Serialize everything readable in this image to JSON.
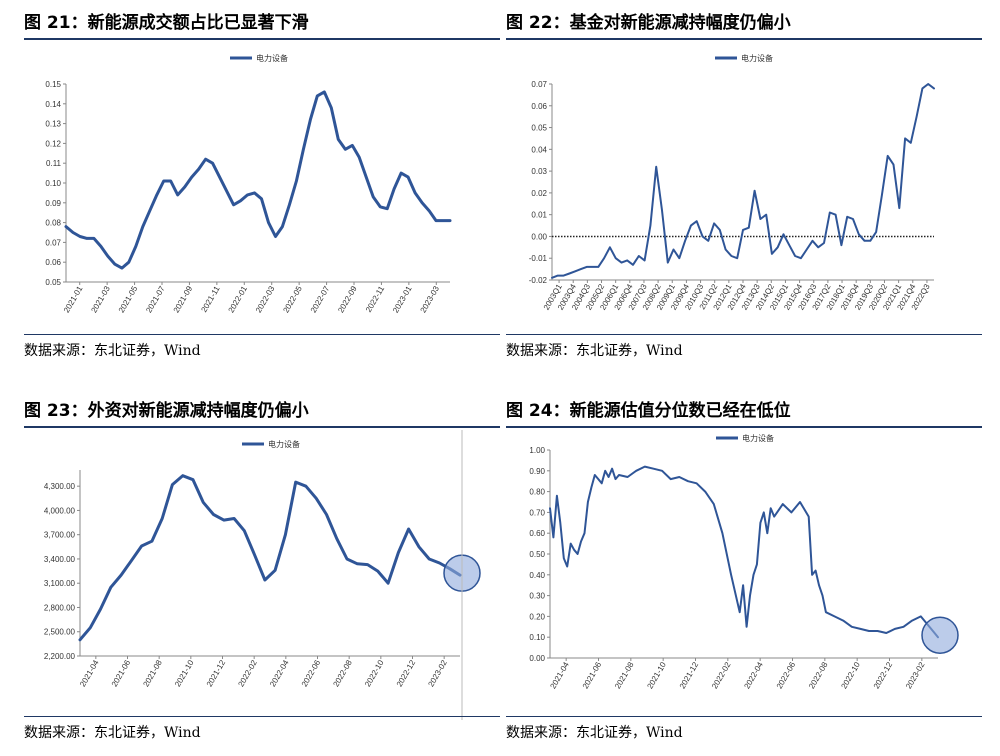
{
  "panels": [
    {
      "id": "fig21",
      "title": "图  21：新能源成交额占比已显著下滑",
      "source": "数据来源：东北证券，Wind"
    },
    {
      "id": "fig22",
      "title": "图  22：基金对新能源减持幅度仍偏小",
      "source": "数据来源：东北证券，Wind"
    },
    {
      "id": "fig23",
      "title": "图  23：外资对新能源减持幅度仍偏小",
      "source": "数据来源：东北证券，Wind"
    },
    {
      "id": "fig24",
      "title": "图  24：新能源估值分位数已经在低位",
      "source": "数据来源：东北证券，Wind"
    }
  ],
  "colors": {
    "line": "#2f5597",
    "rule": "#1f3864",
    "highlight_fill": "#8faadc",
    "highlight_stroke": "#2f5597"
  },
  "chart_data": [
    {
      "type": "line",
      "legend_position": "top-center",
      "grid": false,
      "ylim": [
        0.05,
        0.15
      ],
      "yticks": [
        "0.05",
        "0.06",
        "0.07",
        "0.08",
        "0.09",
        "0.10",
        "0.11",
        "0.12",
        "0.13",
        "0.14",
        "0.15"
      ],
      "xticks": [
        "2021-01",
        "2021-03",
        "2021-05",
        "2021-07",
        "2021-09",
        "2021-11",
        "2022-01",
        "2022-03",
        "2022-05",
        "2022-07",
        "2022-09",
        "2022-11",
        "2023-01",
        "2023-03"
      ],
      "series": [
        {
          "name": "电力设备",
          "x": [
            0,
            0.5,
            1,
            1.5,
            2,
            2.5,
            3,
            3.5,
            4,
            4.5,
            5,
            5.5,
            6,
            6.5,
            7,
            7.5,
            8,
            8.5,
            9,
            9.5,
            10,
            10.5,
            11,
            11.5,
            12,
            12.5,
            13,
            13.5,
            14,
            14.5,
            15,
            15.5,
            16,
            16.5,
            17,
            17.5,
            18,
            18.5,
            19,
            19.5,
            20,
            20.5,
            21,
            21.5,
            22,
            22.5,
            23,
            23.5,
            24,
            24.5,
            25,
            25.5,
            26,
            26.5,
            27,
            27.5
          ],
          "values": [
            0.078,
            0.075,
            0.073,
            0.072,
            0.072,
            0.068,
            0.063,
            0.059,
            0.057,
            0.06,
            0.068,
            0.078,
            0.086,
            0.094,
            0.101,
            0.101,
            0.094,
            0.098,
            0.103,
            0.107,
            0.112,
            0.11,
            0.103,
            0.096,
            0.089,
            0.091,
            0.094,
            0.095,
            0.092,
            0.08,
            0.073,
            0.078,
            0.089,
            0.101,
            0.117,
            0.132,
            0.144,
            0.146,
            0.138,
            0.122,
            0.117,
            0.119,
            0.113,
            0.103,
            0.093,
            0.088,
            0.087,
            0.097,
            0.105,
            0.103,
            0.095,
            0.09,
            0.086,
            0.081,
            0.081,
            0.081
          ]
        }
      ]
    },
    {
      "type": "line",
      "legend_position": "top-center",
      "grid": false,
      "zero_line": "dotted",
      "ylim": [
        -0.02,
        0.07
      ],
      "yticks": [
        "-0.02",
        "-0.01",
        "0.00",
        "0.01",
        "0.02",
        "0.03",
        "0.04",
        "0.05",
        "0.06",
        "0.07"
      ],
      "xticks": [
        "2003Q1",
        "2003Q4",
        "2004Q3",
        "2005Q2",
        "2006Q1",
        "2006Q4",
        "2007Q3",
        "2008Q2",
        "2009Q1",
        "2009Q4",
        "2010Q3",
        "2011Q2",
        "2012Q1",
        "2012Q4",
        "2013Q3",
        "2014Q2",
        "2015Q1",
        "2015Q4",
        "2016Q3",
        "2017Q2",
        "2018Q1",
        "2018Q4",
        "2019Q3",
        "2020Q2",
        "2021Q1",
        "2021Q4",
        "2022Q3"
      ],
      "series": [
        {
          "name": "电力设备",
          "x": [
            0,
            1,
            2,
            3,
            4,
            5,
            6,
            7,
            8,
            9,
            10,
            11,
            12,
            13,
            14,
            15,
            16,
            17,
            18,
            19,
            20,
            21,
            22,
            23,
            24,
            25,
            26,
            27,
            28,
            29,
            30,
            31,
            32,
            33,
            34,
            35,
            36,
            37,
            38,
            39,
            40,
            41,
            42,
            43,
            44,
            45,
            46,
            47,
            48,
            49,
            50,
            51,
            52,
            53,
            54,
            55,
            56,
            57,
            58,
            59,
            60,
            61,
            62,
            63,
            64,
            65,
            66,
            67,
            68,
            69,
            70,
            71,
            72,
            73,
            74,
            75,
            76,
            77,
            78
          ],
          "values": [
            -0.019,
            -0.018,
            -0.018,
            -0.017,
            -0.016,
            -0.015,
            -0.014,
            -0.014,
            -0.014,
            -0.01,
            -0.005,
            -0.01,
            -0.012,
            -0.011,
            -0.013,
            -0.009,
            -0.011,
            0.005,
            0.032,
            0.012,
            -0.012,
            -0.006,
            -0.01,
            -0.002,
            0.005,
            0.007,
            0.0,
            -0.002,
            0.006,
            0.003,
            -0.006,
            -0.009,
            -0.01,
            0.003,
            0.004,
            0.021,
            0.008,
            0.01,
            -0.008,
            -0.005,
            0.001,
            -0.004,
            -0.009,
            -0.01,
            -0.006,
            -0.002,
            -0.005,
            -0.003,
            0.011,
            0.01,
            -0.004,
            0.009,
            0.008,
            0.001,
            -0.002,
            -0.002,
            0.002,
            0.019,
            0.037,
            0.033,
            0.013,
            0.045,
            0.043,
            0.055,
            0.068,
            0.07,
            0.068,
            null,
            null,
            null,
            null,
            null,
            null,
            null,
            null,
            null,
            null,
            null,
            null
          ]
        }
      ]
    },
    {
      "type": "line",
      "legend_position": "top-center",
      "grid": false,
      "ylim": [
        2200,
        4500
      ],
      "yticks": [
        "2,200.00",
        "2,500.00",
        "2,800.00",
        "3,100.00",
        "3,400.00",
        "3,700.00",
        "4,000.00",
        "4,300.00"
      ],
      "xticks": [
        "2021-04",
        "2021-06",
        "2021-08",
        "2021-10",
        "2021-12",
        "2022-02",
        "2022-04",
        "2022-06",
        "2022-08",
        "2022-10",
        "2022-12",
        "2023-02"
      ],
      "highlight": "circle at series end",
      "series": [
        {
          "name": "电力设备",
          "x": [
            0,
            0.5,
            1,
            1.5,
            2,
            2.5,
            3,
            3.5,
            4,
            4.5,
            5,
            5.5,
            6,
            6.5,
            7,
            7.5,
            8,
            8.5,
            9,
            9.5,
            10,
            10.5,
            11,
            11.5,
            12,
            12.5,
            13,
            13.5,
            14,
            14.5,
            15,
            15.5,
            16,
            16.5,
            17,
            17.5,
            18,
            18.5,
            19,
            19.5,
            20,
            20.5,
            21,
            21.5,
            22,
            22.5,
            23,
            23.5
          ],
          "values": [
            2400,
            2550,
            2780,
            3050,
            3200,
            3380,
            3560,
            3620,
            3900,
            4320,
            4430,
            4380,
            4100,
            3950,
            3880,
            3900,
            3750,
            3450,
            3140,
            3260,
            3700,
            4350,
            4300,
            4150,
            3950,
            3650,
            3400,
            3340,
            3330,
            3250,
            3100,
            3480,
            3770,
            3550,
            3400,
            3350,
            3280,
            3200,
            null,
            null,
            null,
            null,
            null,
            null,
            null,
            null,
            null,
            null
          ]
        }
      ]
    },
    {
      "type": "line",
      "legend_position": "top-center",
      "grid": false,
      "ylim": [
        0,
        1
      ],
      "yticks": [
        "0.00",
        "0.10",
        "0.20",
        "0.30",
        "0.40",
        "0.50",
        "0.60",
        "0.70",
        "0.80",
        "0.90",
        "1.00"
      ],
      "xticks": [
        "2021-04",
        "2021-06",
        "2021-08",
        "2021-10",
        "2021-12",
        "2022-02",
        "2022-04",
        "2022-06",
        "2022-08",
        "2022-10",
        "2022-12",
        "2023-02"
      ],
      "highlight": "circle at series end",
      "series": [
        {
          "name": "电力设备",
          "x": [
            0,
            0.2,
            0.4,
            0.6,
            0.8,
            1,
            1.2,
            1.4,
            1.6,
            1.8,
            2,
            2.2,
            2.4,
            2.6,
            2.8,
            3,
            3.2,
            3.4,
            3.6,
            3.8,
            4,
            4.5,
            5,
            5.5,
            6,
            6.5,
            7,
            7.5,
            8,
            8.5,
            9,
            9.5,
            10,
            10.5,
            11,
            11.2,
            11.4,
            11.6,
            11.8,
            12,
            12.2,
            12.4,
            12.6,
            12.8,
            13,
            13.5,
            14,
            14.5,
            15,
            15.2,
            15.4,
            15.6,
            15.8,
            16,
            16.5,
            17,
            17.5,
            18,
            18.5,
            19,
            19.5,
            20,
            20.5,
            21,
            21.5,
            22,
            22.5
          ],
          "values": [
            0.72,
            0.58,
            0.78,
            0.65,
            0.48,
            0.44,
            0.55,
            0.52,
            0.5,
            0.56,
            0.6,
            0.75,
            0.82,
            0.88,
            0.86,
            0.84,
            0.9,
            0.87,
            0.91,
            0.86,
            0.88,
            0.87,
            0.9,
            0.92,
            0.91,
            0.9,
            0.86,
            0.87,
            0.85,
            0.84,
            0.8,
            0.74,
            0.6,
            0.4,
            0.22,
            0.35,
            0.15,
            0.3,
            0.4,
            0.45,
            0.65,
            0.7,
            0.6,
            0.72,
            0.68,
            0.74,
            0.7,
            0.75,
            0.68,
            0.4,
            0.42,
            0.35,
            0.3,
            0.22,
            0.2,
            0.18,
            0.15,
            0.14,
            0.13,
            0.13,
            0.12,
            0.14,
            0.15,
            0.18,
            0.2,
            0.15,
            0.1
          ]
        }
      ]
    }
  ]
}
